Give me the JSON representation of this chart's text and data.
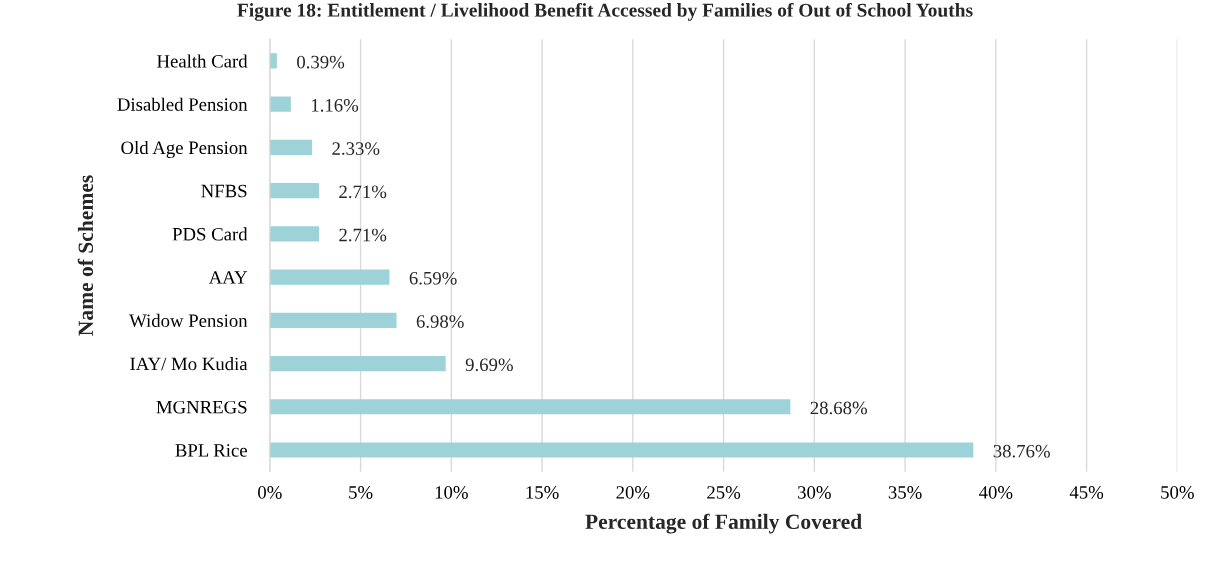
{
  "chart_data": {
    "type": "bar",
    "orientation": "horizontal",
    "title": "Figure 18: Entitlement / Livelihood Benefit Accessed by Families of Out of School Youths",
    "xlabel": "Percentage of Family Covered",
    "ylabel": "Name of Schemes",
    "categories": [
      "Health Card",
      "Disabled Pension",
      "Old Age Pension",
      "NFBS",
      "PDS Card",
      "AAY",
      "Widow Pension",
      "IAY/ Mo Kudia",
      "MGNREGS",
      "BPL Rice"
    ],
    "values": [
      0.39,
      1.16,
      2.33,
      2.71,
      2.71,
      6.59,
      6.98,
      9.69,
      28.68,
      38.76
    ],
    "value_labels": [
      "0.39%",
      "1.16%",
      "2.33%",
      "2.71%",
      "2.71%",
      "6.59%",
      "6.98%",
      "9.69%",
      "28.68%",
      "38.76%"
    ],
    "color": "#9dd3d8",
    "xlim": [
      0,
      50
    ],
    "xticks": [
      {
        "value": 0,
        "label": "0%"
      },
      {
        "value": 5,
        "label": "5%"
      },
      {
        "value": 10,
        "label": "10%"
      },
      {
        "value": 15,
        "label": "15%"
      },
      {
        "value": 20,
        "label": "20%"
      },
      {
        "value": 25,
        "label": "25%"
      },
      {
        "value": 30,
        "label": "30%"
      },
      {
        "value": 35,
        "label": "35%"
      },
      {
        "value": 40,
        "label": "40%"
      },
      {
        "value": 45,
        "label": "45%"
      },
      {
        "value": 50,
        "label": "50%"
      }
    ],
    "grid": "x"
  }
}
